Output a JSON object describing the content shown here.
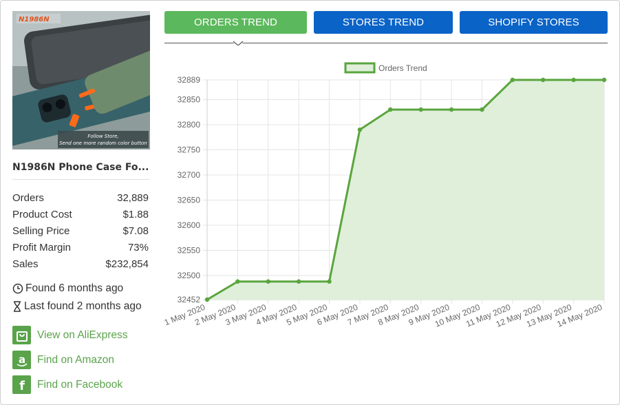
{
  "product": {
    "title": "N1986N Phone Case Fo...",
    "image_brand": "N1986N",
    "image_caption_line1": "Follow Store,",
    "image_caption_line2": "Send one more random color button",
    "stats": [
      {
        "label": "Orders",
        "value": "32,889"
      },
      {
        "label": "Product Cost",
        "value": "$1.88"
      },
      {
        "label": "Selling Price",
        "value": "$7.08"
      },
      {
        "label": "Profit Margin",
        "value": "73%"
      },
      {
        "label": "Sales",
        "value": "$232,854"
      }
    ],
    "found": "Found 6 months ago",
    "last_found": "Last found 2 months ago",
    "links": {
      "aliexpress": "View on AliExpress",
      "amazon": "Find on Amazon",
      "facebook": "Find on Facebook"
    }
  },
  "tabs": {
    "orders": "ORDERS TREND",
    "stores": "STORES TREND",
    "shopify": "SHOPIFY STORES"
  },
  "colors": {
    "accent_green": "#5cb85c",
    "link_green": "#5aa34b",
    "tab_blue": "#0a63c7",
    "line_green": "#5aa53e",
    "fill_green": "#dfefda"
  },
  "chart_data": {
    "type": "line",
    "legend": "Orders Trend",
    "legend_position": "top",
    "x": [
      "1 May 2020",
      "2 May 2020",
      "3 May 2020",
      "4 May 2020",
      "5 May 2020",
      "6 May 2020",
      "7 May 2020",
      "8 May 2020",
      "9 May 2020",
      "10 May 2020",
      "11 May 2020",
      "12 May 2020",
      "13 May 2020",
      "14 May 2020"
    ],
    "series": [
      {
        "name": "Orders Trend",
        "values": [
          32452,
          32488,
          32488,
          32488,
          32488,
          32790,
          32830,
          32830,
          32830,
          32830,
          32889,
          32889,
          32889,
          32889
        ]
      }
    ],
    "yticks": [
      32452,
      32500,
      32550,
      32600,
      32650,
      32700,
      32750,
      32800,
      32850,
      32889
    ],
    "ylim": [
      32452,
      32889
    ],
    "grid": true,
    "filled": true
  }
}
